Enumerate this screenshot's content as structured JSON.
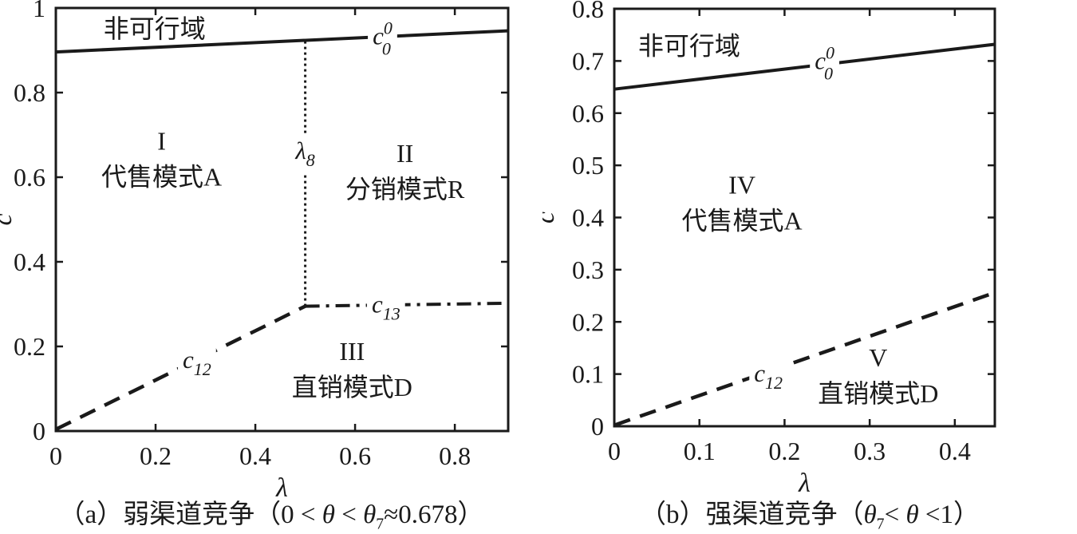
{
  "figure": {
    "ink": "#1a1a1a",
    "background": "#ffffff"
  },
  "chart_data": [
    {
      "id": "a",
      "type": "line",
      "subtype": "region-boundary-diagram",
      "xlabel": "λ",
      "ylabel": "c",
      "xlim": [
        0,
        0.907
      ],
      "ylim": [
        0,
        1
      ],
      "grid": false,
      "box": true,
      "xticks": [
        {
          "v": 0,
          "t": "0"
        },
        {
          "v": 0.2,
          "t": "0.2"
        },
        {
          "v": 0.4,
          "t": "0.4"
        },
        {
          "v": 0.6,
          "t": "0.6"
        },
        {
          "v": 0.8,
          "t": "0.8"
        }
      ],
      "yticks": [
        {
          "v": 0,
          "t": "0"
        },
        {
          "v": 0.2,
          "t": "0.2"
        },
        {
          "v": 0.4,
          "t": "0.4"
        },
        {
          "v": 0.6,
          "t": "0.6"
        },
        {
          "v": 0.8,
          "t": "0.8"
        },
        {
          "v": 1,
          "t": "1"
        }
      ],
      "series": [
        {
          "name": "c0-upper-boundary",
          "style": "solid",
          "points": [
            [
              0,
              0.896
            ],
            [
              0.907,
              0.946
            ]
          ],
          "label": {
            "base": "c",
            "sup": "0",
            "sub": "0"
          },
          "label_at": [
            0.655,
            0.933
          ]
        },
        {
          "name": "c12-boundary",
          "style": "dashed",
          "points": [
            [
              0,
              0.004
            ],
            [
              0.5,
              0.295
            ]
          ],
          "label": {
            "base": "c",
            "sub": "12"
          },
          "label_at": [
            0.283,
            0.168
          ]
        },
        {
          "name": "c13-boundary",
          "style": "dashdot",
          "points": [
            [
              0.5,
              0.295
            ],
            [
              0.907,
              0.302
            ]
          ],
          "label": {
            "base": "c",
            "sub": "13"
          },
          "label_at": [
            0.662,
            0.299
          ]
        },
        {
          "name": "lambda8-boundary",
          "style": "dotted",
          "points": [
            [
              0.5,
              0.295
            ],
            [
              0.5,
              0.92
            ]
          ],
          "label": {
            "base": "λ",
            "sub": "8"
          },
          "label_at": [
            0.5,
            0.662
          ]
        }
      ],
      "region_labels": [
        {
          "name": "infeasible-region",
          "lines": [
            "非可行域"
          ],
          "at": [
            0.198,
            0.951
          ]
        },
        {
          "name": "region-1",
          "lines": [
            "I",
            "代售模式A"
          ],
          "at": [
            0.212,
            0.643
          ]
        },
        {
          "name": "region-2",
          "lines": [
            "II",
            "分销模式R"
          ],
          "at": [
            0.7,
            0.614
          ]
        },
        {
          "name": "region-3",
          "lines": [
            "III",
            "直销模式D"
          ],
          "at": [
            0.594,
            0.146
          ]
        }
      ],
      "caption": {
        "plain_text": "（a）弱渠道竞争（0 < θ < θ7≈0.678）",
        "parts": [
          {
            "t": "（a）弱渠道竞争（0 < "
          },
          {
            "t": "θ",
            "i": true
          },
          {
            "t": " < "
          },
          {
            "t": "θ",
            "i": true
          },
          {
            "t": "7",
            "sub": true
          },
          {
            "t": "≈0.678）"
          }
        ]
      }
    },
    {
      "id": "b",
      "type": "line",
      "subtype": "region-boundary-diagram",
      "xlabel": "λ",
      "ylabel": "c",
      "xlim": [
        0,
        0.447
      ],
      "ylim": [
        0,
        0.8
      ],
      "grid": false,
      "box": true,
      "xticks": [
        {
          "v": 0,
          "t": "0"
        },
        {
          "v": 0.1,
          "t": "0.1"
        },
        {
          "v": 0.2,
          "t": "0.2"
        },
        {
          "v": 0.3,
          "t": "0.3"
        },
        {
          "v": 0.4,
          "t": "0.4"
        }
      ],
      "yticks": [
        {
          "v": 0,
          "t": "0"
        },
        {
          "v": 0.1,
          "t": "0.1"
        },
        {
          "v": 0.2,
          "t": "0.2"
        },
        {
          "v": 0.3,
          "t": "0.3"
        },
        {
          "v": 0.4,
          "t": "0.4"
        },
        {
          "v": 0.5,
          "t": "0.5"
        },
        {
          "v": 0.6,
          "t": "0.6"
        },
        {
          "v": 0.7,
          "t": "0.7"
        },
        {
          "v": 0.8,
          "t": "0.8"
        }
      ],
      "series": [
        {
          "name": "c0-upper-boundary",
          "style": "solid",
          "points": [
            [
              0,
              0.646
            ],
            [
              0.447,
              0.732
            ]
          ],
          "label": {
            "base": "c",
            "sup": "0",
            "sub": "0"
          },
          "label_at": [
            0.247,
            0.7
          ]
        },
        {
          "name": "c12-boundary",
          "style": "dashed",
          "points": [
            [
              0,
              0.002
            ],
            [
              0.447,
              0.256
            ]
          ],
          "label": {
            "base": "c",
            "sub": "12"
          },
          "label_at": [
            0.181,
            0.101
          ]
        }
      ],
      "region_labels": [
        {
          "name": "infeasible-region",
          "lines": [
            "非可行域"
          ],
          "at": [
            0.088,
            0.729
          ]
        },
        {
          "name": "region-4",
          "lines": [
            "IV",
            "代售模式A"
          ],
          "at": [
            0.15,
            0.428
          ]
        },
        {
          "name": "region-5",
          "lines": [
            "V",
            "直销模式D"
          ],
          "at": [
            0.31,
            0.097
          ]
        }
      ],
      "caption": {
        "plain_text": "（b）强渠道竞争（θ7< θ <1）",
        "parts": [
          {
            "t": "（b）强渠道竞争（"
          },
          {
            "t": "θ",
            "i": true
          },
          {
            "t": "7",
            "sub": true
          },
          {
            "t": "< "
          },
          {
            "t": "θ",
            "i": true
          },
          {
            "t": " <1）"
          }
        ]
      }
    }
  ]
}
